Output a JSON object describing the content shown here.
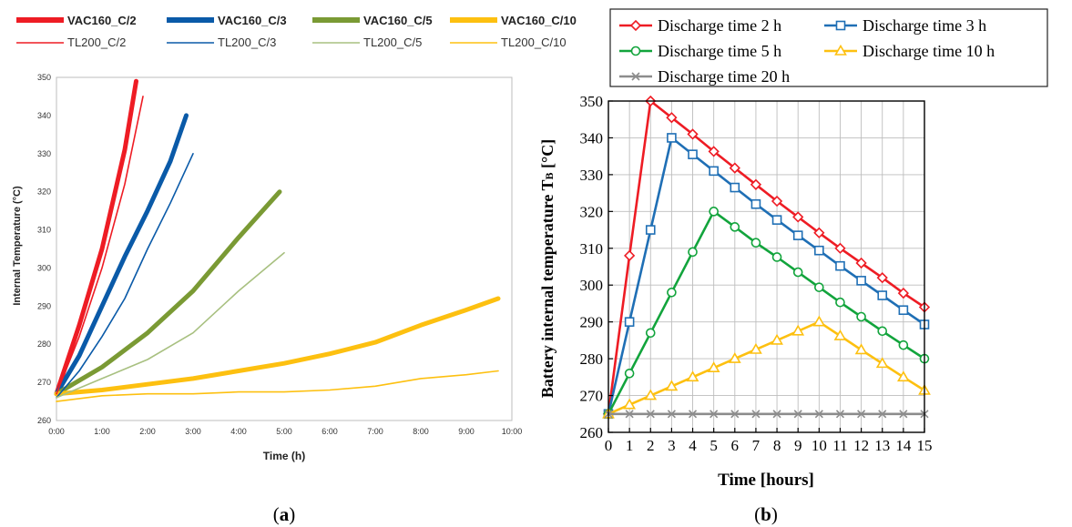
{
  "panels": {
    "a": {
      "caption_open": "(",
      "caption_letter": "a",
      "caption_close": ")"
    },
    "b": {
      "caption_open": "(",
      "caption_letter": "b",
      "caption_close": ")"
    }
  },
  "chart_data": [
    {
      "type": "line",
      "title": "",
      "xlabel": "Time (h)",
      "ylabel": "Internal Temperature (°C)",
      "xlim": [
        0,
        10
      ],
      "ylim": [
        260,
        350
      ],
      "x_ticks": [
        "0:00",
        "1:00",
        "2:00",
        "3:00",
        "4:00",
        "5:00",
        "6:00",
        "7:00",
        "8:00",
        "9:00",
        "10:00"
      ],
      "y_ticks": [
        260,
        270,
        280,
        290,
        300,
        310,
        320,
        330,
        340,
        350
      ],
      "grid": true,
      "legend_position": "top",
      "series": [
        {
          "name": "VAC160_C/2",
          "color": "#ee1c24",
          "style": "thick",
          "x": [
            0,
            0.5,
            1,
            1.5,
            1.75
          ],
          "y": [
            267,
            285,
            305,
            331,
            349
          ]
        },
        {
          "name": "VAC160_C/3",
          "color": "#0a5aa8",
          "style": "thick",
          "x": [
            0,
            0.5,
            1,
            1.5,
            2,
            2.5,
            2.85
          ],
          "y": [
            267,
            277,
            290,
            303,
            315,
            328,
            340
          ]
        },
        {
          "name": "VAC160_C/5",
          "color": "#7a9a34",
          "style": "thick",
          "x": [
            0,
            1,
            2,
            3,
            4,
            4.9
          ],
          "y": [
            267,
            274,
            283,
            294,
            308,
            320
          ]
        },
        {
          "name": "VAC160_C/10",
          "color": "#fdc010",
          "style": "thick",
          "x": [
            0,
            1,
            2,
            3,
            4,
            5,
            6,
            7,
            8,
            9,
            9.7
          ],
          "y": [
            267,
            268,
            269.5,
            271,
            273,
            275,
            277.5,
            280.5,
            285,
            289,
            292
          ]
        },
        {
          "name": "TL200_C/2",
          "color": "#ee1c24",
          "style": "thin",
          "x": [
            0,
            0.5,
            1,
            1.5,
            1.9
          ],
          "y": [
            267,
            282,
            300,
            322,
            345
          ]
        },
        {
          "name": "TL200_C/3",
          "color": "#0a5aa8",
          "style": "thin",
          "x": [
            0,
            0.5,
            1,
            1.5,
            2,
            2.5,
            3
          ],
          "y": [
            266,
            273,
            282,
            292,
            305,
            317,
            330
          ]
        },
        {
          "name": "TL200_C/5",
          "color": "#a8c080",
          "style": "thin",
          "x": [
            0,
            1,
            2,
            3,
            4,
            5
          ],
          "y": [
            266,
            271,
            276,
            283,
            294,
            304
          ]
        },
        {
          "name": "TL200_C/10",
          "color": "#fdc010",
          "style": "thin",
          "x": [
            0,
            1,
            2,
            3,
            4,
            5,
            6,
            7,
            8,
            9,
            9.7
          ],
          "y": [
            265,
            266.5,
            267,
            267,
            267.5,
            267.5,
            268,
            269,
            271,
            272,
            273
          ]
        }
      ]
    },
    {
      "type": "line",
      "title": "",
      "xlabel": "Time [hours]",
      "ylabel_main": "Battery internal temperature T",
      "ylabel_sub": "B",
      "ylabel_unit": " [°C]",
      "xlim": [
        0,
        15
      ],
      "ylim": [
        260,
        350
      ],
      "x_ticks": [
        0,
        1,
        2,
        3,
        4,
        5,
        6,
        7,
        8,
        9,
        10,
        11,
        12,
        13,
        14,
        15
      ],
      "y_ticks": [
        260,
        270,
        280,
        290,
        300,
        310,
        320,
        330,
        340,
        350
      ],
      "grid": true,
      "legend_position": "top",
      "series": [
        {
          "name": "Discharge time 2 h",
          "color": "#ee1c24",
          "marker": "diamond",
          "x": [
            0,
            1,
            2,
            3,
            4,
            5,
            6,
            7,
            8,
            9,
            10,
            11,
            12,
            13,
            14,
            15
          ],
          "y": [
            265,
            308,
            350,
            345.5,
            341,
            336.3,
            331.8,
            327.3,
            322.8,
            318.5,
            314.2,
            310,
            306,
            302,
            297.8,
            294
          ]
        },
        {
          "name": "Discharge time 3 h",
          "color": "#1f6fb5",
          "marker": "square",
          "x": [
            0,
            1,
            2,
            3,
            4,
            5,
            6,
            7,
            8,
            9,
            10,
            11,
            12,
            13,
            14,
            15
          ],
          "y": [
            265,
            290,
            315,
            340,
            335.5,
            331,
            326.5,
            322,
            317.7,
            313.5,
            309.4,
            305.2,
            301.2,
            297.2,
            293.2,
            289.3
          ]
        },
        {
          "name": "Discharge time 5 h",
          "color": "#12a43c",
          "marker": "circle",
          "x": [
            0,
            1,
            2,
            3,
            4,
            5,
            6,
            7,
            8,
            9,
            10,
            11,
            12,
            13,
            14,
            15
          ],
          "y": [
            265,
            276,
            287,
            298,
            309,
            320,
            315.8,
            311.5,
            307.6,
            303.5,
            299.4,
            295.3,
            291.4,
            287.5,
            283.7,
            280
          ]
        },
        {
          "name": "Discharge time 10 h",
          "color": "#fdc010",
          "marker": "triangle",
          "x": [
            0,
            1,
            2,
            3,
            4,
            5,
            6,
            7,
            8,
            9,
            10,
            11,
            12,
            13,
            14,
            15
          ],
          "y": [
            265,
            267.5,
            270,
            272.5,
            275,
            277.5,
            280,
            282.5,
            285,
            287.5,
            290,
            286.2,
            282.4,
            278.7,
            275,
            271.4
          ]
        },
        {
          "name": "Discharge time 20 h",
          "color": "#8c8c8c",
          "marker": "x",
          "x": [
            0,
            1,
            2,
            3,
            4,
            5,
            6,
            7,
            8,
            9,
            10,
            11,
            12,
            13,
            14,
            15
          ],
          "y": [
            265,
            265,
            265,
            265,
            265,
            265,
            265,
            265,
            265,
            265,
            265,
            265,
            265,
            265,
            265,
            265
          ]
        }
      ]
    }
  ]
}
